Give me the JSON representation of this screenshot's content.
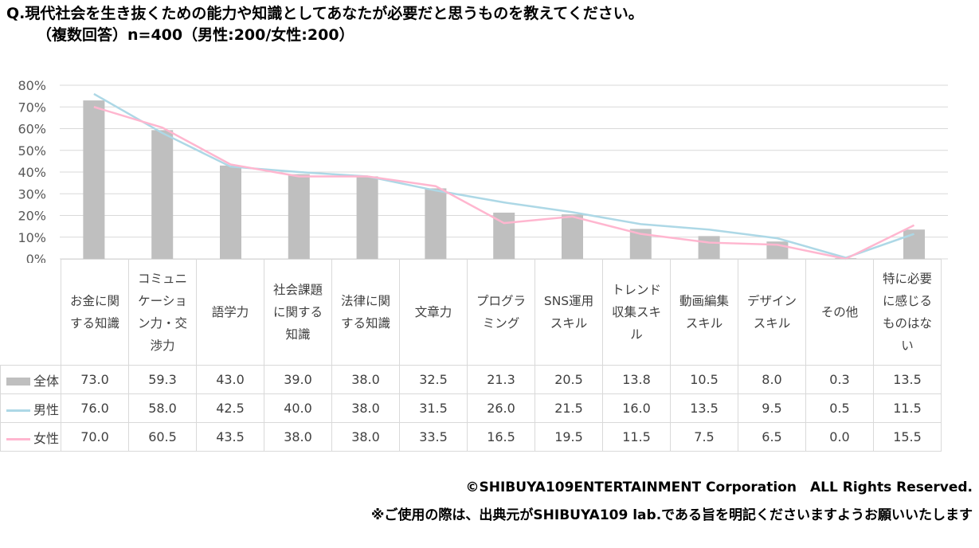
{
  "title": {
    "line1": "Q.現代社会を生き抜くための能力や知識としてあなたが必要だと思うものを教えてください。",
    "line2": "（複数回答）n=400（男性:200/女性:200）"
  },
  "chart_data": {
    "type": "bar+line",
    "categories": [
      "お金に関\nする知識",
      "コミュニ\nケーショ\nン力・交\n渉力",
      "語学力",
      "社会課題\nに関する\n知識",
      "法律に関\nする知識",
      "文章力",
      "プログラ\nミング",
      "SNS運用\nスキル",
      "トレンド\n収集スキ\nル",
      "動画編集\nスキル",
      "デザイン\nスキル",
      "その他",
      "特に必要\nに感じる\nものはな\nい"
    ],
    "series": [
      {
        "name": "全体",
        "type": "bar",
        "color": "#bfbfbf",
        "values": [
          73.0,
          59.3,
          43.0,
          39.0,
          38.0,
          32.5,
          21.3,
          20.5,
          13.8,
          10.5,
          8.0,
          0.3,
          13.5
        ],
        "labels": [
          "73.0",
          "59.3",
          "43.0",
          "39.0",
          "38.0",
          "32.5",
          "21.3",
          "20.5",
          "13.8",
          "10.5",
          "8.0",
          "0.3",
          "13.5"
        ]
      },
      {
        "name": "男性",
        "type": "line",
        "color": "#add8e6",
        "values": [
          76.0,
          58.0,
          42.5,
          40.0,
          38.0,
          31.5,
          26.0,
          21.5,
          16.0,
          13.5,
          9.5,
          0.5,
          11.5
        ],
        "labels": [
          "76.0",
          "58.0",
          "42.5",
          "40.0",
          "38.0",
          "31.5",
          "26.0",
          "21.5",
          "16.0",
          "13.5",
          "9.5",
          "0.5",
          "11.5"
        ]
      },
      {
        "name": "女性",
        "type": "line",
        "color": "#ffb6cf",
        "values": [
          70.0,
          60.5,
          43.5,
          38.0,
          38.0,
          33.5,
          16.5,
          19.5,
          11.5,
          7.5,
          6.5,
          0.0,
          15.5
        ],
        "labels": [
          "70.0",
          "60.5",
          "43.5",
          "38.0",
          "38.0",
          "33.5",
          "16.5",
          "19.5",
          "11.5",
          "7.5",
          "6.5",
          "0.0",
          "15.5"
        ]
      }
    ],
    "ylim": [
      0,
      80
    ],
    "yticks": [
      "0%",
      "10%",
      "20%",
      "30%",
      "40%",
      "50%",
      "60%",
      "70%",
      "80%"
    ],
    "grid": true,
    "legend": "data-table"
  },
  "footer": {
    "copyright": "©SHIBUYA109ENTERTAINMENT Corporation　ALL Rights Reserved.",
    "note": "※ご使用の際は、出典元がSHIBUYA109 lab.である旨を明記くださいますようお願いいたします"
  }
}
